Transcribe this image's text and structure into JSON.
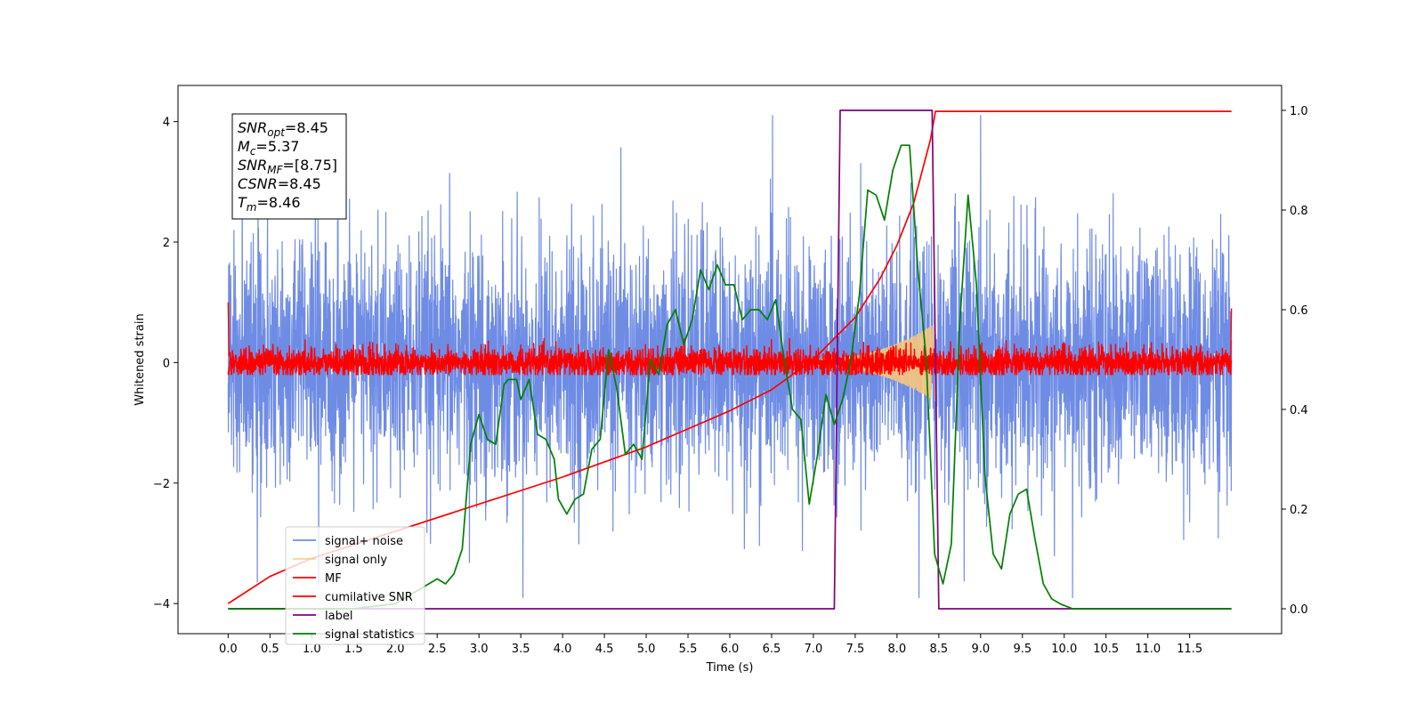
{
  "chart_data": {
    "type": "line",
    "xlabel": "Time (s)",
    "ylabel": "Whitened strain",
    "xlim": [
      -0.6,
      12.6
    ],
    "ylim_left": [
      -4.5,
      4.6
    ],
    "ylim_right": [
      -0.05,
      1.05
    ],
    "x_ticks": [
      "0.0",
      "0.5",
      "1.0",
      "1.5",
      "2.0",
      "2.5",
      "3.0",
      "3.5",
      "4.0",
      "4.5",
      "5.0",
      "5.5",
      "6.0",
      "6.5",
      "7.0",
      "7.5",
      "8.0",
      "8.5",
      "9.0",
      "9.5",
      "10.0",
      "10.5",
      "11.0",
      "11.5"
    ],
    "y_ticks_left": [
      "−4",
      "−2",
      "0",
      "2",
      "4"
    ],
    "y_ticks_right": [
      "0.0",
      "0.2",
      "0.4",
      "0.6",
      "0.8",
      "1.0"
    ],
    "legend_position": "lower-left",
    "annotation": {
      "lines": [
        {
          "base": "SNR",
          "sub": "opt",
          "value": "=8.45"
        },
        {
          "base": "M",
          "sub": "c",
          "value": "=5.37"
        },
        {
          "base": "SNR",
          "sub": "MF",
          "value": "=[8.75]"
        },
        {
          "base": "CSNR",
          "sub": "",
          "value": "=8.45"
        },
        {
          "base": "T",
          "sub": "m",
          "value": "=8.46"
        }
      ]
    },
    "series": [
      {
        "name": "signal+ noise",
        "color": "#6f8ce5",
        "axis": "left",
        "kind": "noise",
        "std": 1.0,
        "t_start": 0.0,
        "t_end": 12.0
      },
      {
        "name": "signal only",
        "color": "#f5c77e",
        "axis": "left",
        "kind": "chirp",
        "t_start": 7.0,
        "t_end": 8.46,
        "amp_max": 0.65
      },
      {
        "name": "MF",
        "color": "#ff0000",
        "axis": "left",
        "kind": "noise",
        "std": 0.12,
        "t_start": 0.0,
        "t_end": 12.0
      },
      {
        "name": "cumilative SNR",
        "color": "#ff0000",
        "axis": "left",
        "x": [
          0.0,
          0.5,
          1.0,
          2.0,
          3.0,
          4.0,
          5.0,
          5.5,
          6.0,
          6.5,
          7.0,
          7.5,
          7.8,
          8.0,
          8.2,
          8.4,
          8.46,
          12.0
        ],
        "y": [
          -4.0,
          -3.55,
          -3.25,
          -2.8,
          -2.35,
          -1.9,
          -1.4,
          -1.1,
          -0.8,
          -0.45,
          0.05,
          0.75,
          1.4,
          1.95,
          2.65,
          3.7,
          4.17,
          4.17
        ]
      },
      {
        "name": "label",
        "color": "#800080",
        "axis": "right",
        "x": [
          0.0,
          7.25,
          7.32,
          8.42,
          8.5,
          12.0
        ],
        "y": [
          0.0,
          0.0,
          1.0,
          1.0,
          0.0,
          0.0
        ]
      },
      {
        "name": "signal statistics",
        "color": "#008000",
        "axis": "right",
        "x": [
          0.0,
          0.5,
          1.0,
          1.5,
          2.0,
          2.3,
          2.5,
          2.6,
          2.7,
          2.8,
          2.9,
          3.0,
          3.1,
          3.2,
          3.3,
          3.35,
          3.45,
          3.5,
          3.6,
          3.7,
          3.8,
          3.9,
          3.95,
          4.05,
          4.15,
          4.25,
          4.35,
          4.45,
          4.55,
          4.65,
          4.75,
          4.85,
          4.95,
          5.05,
          5.15,
          5.25,
          5.35,
          5.45,
          5.55,
          5.65,
          5.75,
          5.85,
          5.95,
          6.05,
          6.15,
          6.25,
          6.35,
          6.45,
          6.55,
          6.65,
          6.75,
          6.85,
          6.95,
          7.05,
          7.15,
          7.25,
          7.35,
          7.45,
          7.55,
          7.65,
          7.75,
          7.85,
          7.95,
          8.05,
          8.15,
          8.25,
          8.35,
          8.45,
          8.55,
          8.65,
          8.75,
          8.85,
          8.95,
          9.05,
          9.15,
          9.25,
          9.35,
          9.45,
          9.55,
          9.65,
          9.75,
          9.85,
          9.95,
          10.1,
          10.5,
          11.0,
          11.5,
          12.0
        ],
        "y": [
          0.0,
          0.0,
          0.0,
          0.0,
          0.01,
          0.04,
          0.06,
          0.05,
          0.07,
          0.12,
          0.33,
          0.39,
          0.34,
          0.33,
          0.45,
          0.46,
          0.46,
          0.42,
          0.46,
          0.35,
          0.34,
          0.3,
          0.22,
          0.19,
          0.22,
          0.23,
          0.32,
          0.34,
          0.52,
          0.44,
          0.31,
          0.33,
          0.3,
          0.5,
          0.47,
          0.57,
          0.6,
          0.53,
          0.58,
          0.68,
          0.64,
          0.69,
          0.65,
          0.65,
          0.58,
          0.6,
          0.6,
          0.58,
          0.62,
          0.5,
          0.4,
          0.38,
          0.21,
          0.31,
          0.43,
          0.37,
          0.42,
          0.5,
          0.63,
          0.84,
          0.83,
          0.78,
          0.88,
          0.93,
          0.93,
          0.68,
          0.5,
          0.11,
          0.05,
          0.13,
          0.57,
          0.83,
          0.65,
          0.27,
          0.11,
          0.08,
          0.19,
          0.23,
          0.24,
          0.14,
          0.05,
          0.02,
          0.01,
          0.0,
          0.0,
          0.0,
          0.0,
          0.0
        ]
      }
    ]
  }
}
